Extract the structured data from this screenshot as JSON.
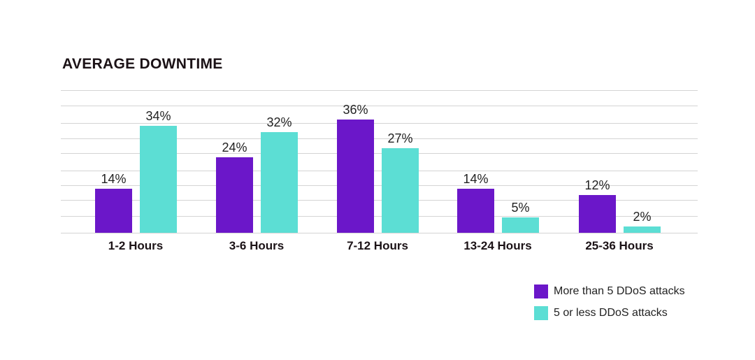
{
  "chart_data": {
    "type": "bar",
    "title": "AVERAGE DOWNTIME",
    "xlabel": "",
    "ylabel": "",
    "ylim": [
      0,
      45
    ],
    "grid": true,
    "legend_position": "bottom-right",
    "categories": [
      "1-2 Hours",
      "3-6 Hours",
      "7-12 Hours",
      "13-24 Hours",
      "25-36 Hours"
    ],
    "series": [
      {
        "name": "More than 5 DDoS attacks",
        "color": "#6b17c9",
        "values": [
          14,
          24,
          36,
          14,
          12
        ],
        "labels": [
          "14%",
          "24%",
          "36%",
          "14%",
          "12%"
        ]
      },
      {
        "name": "5 or less DDoS attacks",
        "color": "#5cded4",
        "values": [
          34,
          32,
          27,
          5,
          2
        ],
        "labels": [
          "34%",
          "32%",
          "27%",
          "5%",
          "2%"
        ]
      }
    ]
  }
}
